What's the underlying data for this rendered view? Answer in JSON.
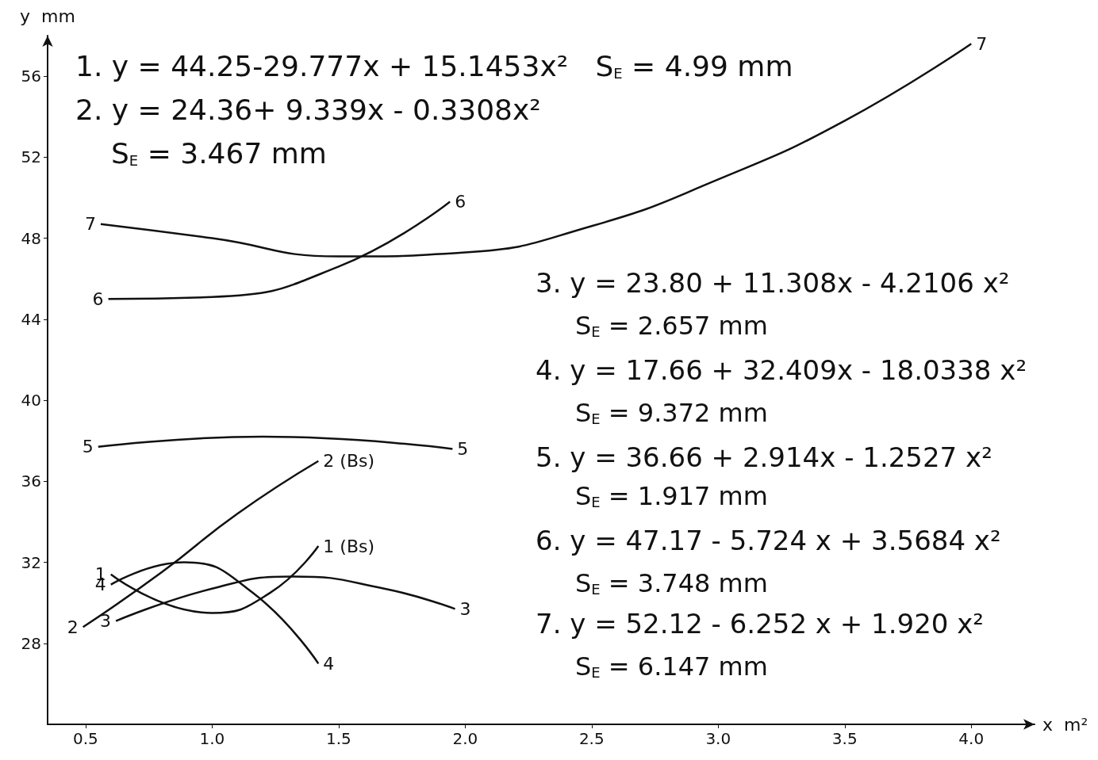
{
  "chart_data": {
    "type": "line",
    "xlabel": "x  m²",
    "ylabel": "y  mm",
    "xlim": [
      0.35,
      4.25
    ],
    "ylim": [
      24,
      58
    ],
    "xticks": [
      0.5,
      {
        "value": 1,
        "label": "1.0"
      },
      1.5,
      {
        "value": 2,
        "label": "2.0"
      },
      2.5,
      {
        "value": 3,
        "label": "3.0"
      },
      3.5,
      {
        "value": 4,
        "label": "4.0"
      }
    ],
    "yticks": [
      28,
      32,
      36,
      40,
      44,
      48,
      52,
      56
    ],
    "marker": "none",
    "grid": false,
    "series": [
      {
        "color": "#111111",
        "x": [
          0.56,
          1.0,
          1.5,
          2.0,
          2.5,
          3.0,
          3.5,
          4.0
        ],
        "values": [
          48.7,
          48.0,
          47.1,
          47.3,
          48.6,
          50.9,
          53.8,
          57.6
        ]
      },
      {
        "color": "#111111",
        "x": [
          0.59,
          1.0,
          1.5,
          1.94
        ],
        "values": [
          45.0,
          45.1,
          46.6,
          49.8
        ]
      },
      {
        "color": "#111111",
        "x": [
          0.55,
          1.2,
          1.95
        ],
        "values": [
          37.7,
          38.2,
          37.6
        ]
      },
      {
        "color": "#111111",
        "x": [
          0.49,
          0.8,
          1.1,
          1.42
        ],
        "values": [
          28.8,
          31.5,
          34.4,
          37.0
        ]
      },
      {
        "color": "#111111",
        "x": [
          0.6,
          1.0,
          1.23,
          1.42
        ],
        "values": [
          31.4,
          29.5,
          30.5,
          32.8
        ]
      },
      {
        "color": "#111111",
        "x": [
          0.62,
          1.0,
          1.32,
          1.68,
          1.96
        ],
        "values": [
          29.1,
          30.7,
          31.3,
          30.7,
          29.7
        ]
      },
      {
        "color": "#111111",
        "x": [
          0.6,
          0.89,
          1.16,
          1.42
        ],
        "values": [
          30.9,
          32.0,
          30.5,
          27.0
        ]
      }
    ],
    "annotations": [
      {
        "text": "7",
        "x": 0.56,
        "y": 48.7
      },
      {
        "text": "6",
        "x": 0.59,
        "y": 45.0
      },
      {
        "text": "5",
        "x": 0.55,
        "y": 37.7
      },
      {
        "text": "1",
        "x": 0.6,
        "y": 31.4
      },
      {
        "text": "4",
        "x": 0.6,
        "y": 30.9
      },
      {
        "text": "2",
        "x": 0.49,
        "y": 28.8
      },
      {
        "text": "3",
        "x": 0.62,
        "y": 29.1
      },
      {
        "text": "7",
        "x": 4.0,
        "y": 57.6
      },
      {
        "text": "6",
        "x": 1.94,
        "y": 49.8
      },
      {
        "text": "5",
        "x": 1.95,
        "y": 37.6
      },
      {
        "text": "2 (Bs)",
        "x": 1.42,
        "y": 37.0
      },
      {
        "text": "1 (Bs)",
        "x": 1.42,
        "y": 32.8
      },
      {
        "text": "3",
        "x": 1.96,
        "y": 29.7
      },
      {
        "text": "4",
        "x": 1.42,
        "y": 27.0
      },
      "1. y = 44.25-29.777x + 15.1453x²   S$_{E}$ = 4.99 mm",
      "2. y = 24.36+ 9.339x - 0.3308x²",
      "S$_{E}$ = 3.467 mm",
      "3. y = 23.80 + 11.308x - 4.2106 x²",
      "S$_{E}$ = 2.657 mm",
      "4. y = 17.66 + 32.409x - 18.0338 x²",
      "S$_{E}$ = 9.372 mm",
      "5. y = 36.66 + 2.914x - 1.2527 x²",
      "S$_{E}$ = 1.917 mm",
      "6. y = 47.17 - 5.724 x + 3.5684 x²",
      "S$_{E}$ = 3.748 mm",
      "7. y = 52.12 - 6.252 x + 1.920 x²",
      "S$_{E}$ = 6.147 mm"
    ]
  }
}
